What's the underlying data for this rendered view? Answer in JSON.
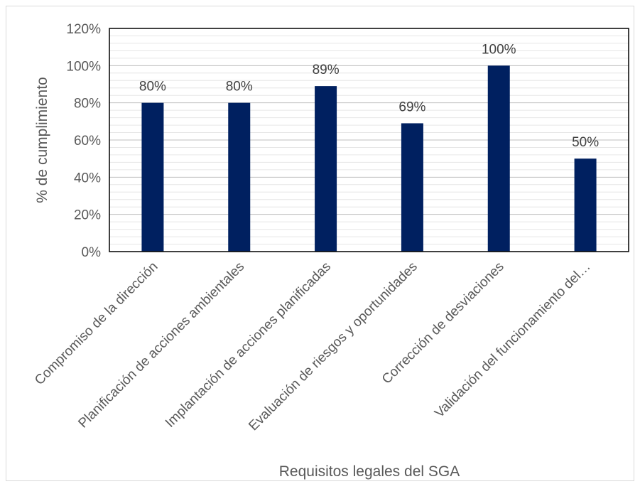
{
  "chart_data": {
    "type": "bar",
    "title": "",
    "xlabel": "Requisitos legales del SGA",
    "ylabel": "% de cumplimiento",
    "categories": [
      "Compromiso de la dirección",
      "Planificación de acciones ambientales",
      "Implantación de acciones planificadas",
      "Evaluación de riesgos y oportunidades",
      "Corrección de desviaciones",
      "Validación del funcionamiento del…"
    ],
    "values": [
      80,
      80,
      89,
      69,
      100,
      50
    ],
    "data_labels": [
      "80%",
      "80%",
      "89%",
      "69%",
      "100%",
      "50%"
    ],
    "y_ticks": [
      "0%",
      "20%",
      "40%",
      "60%",
      "80%",
      "100%",
      "120%"
    ],
    "ylim": [
      0,
      120
    ],
    "grid": true,
    "legend": "none",
    "colors": {
      "bar": "#002060",
      "grid": "#d9d9d9",
      "axis": "#000000",
      "text": "#595959"
    }
  }
}
